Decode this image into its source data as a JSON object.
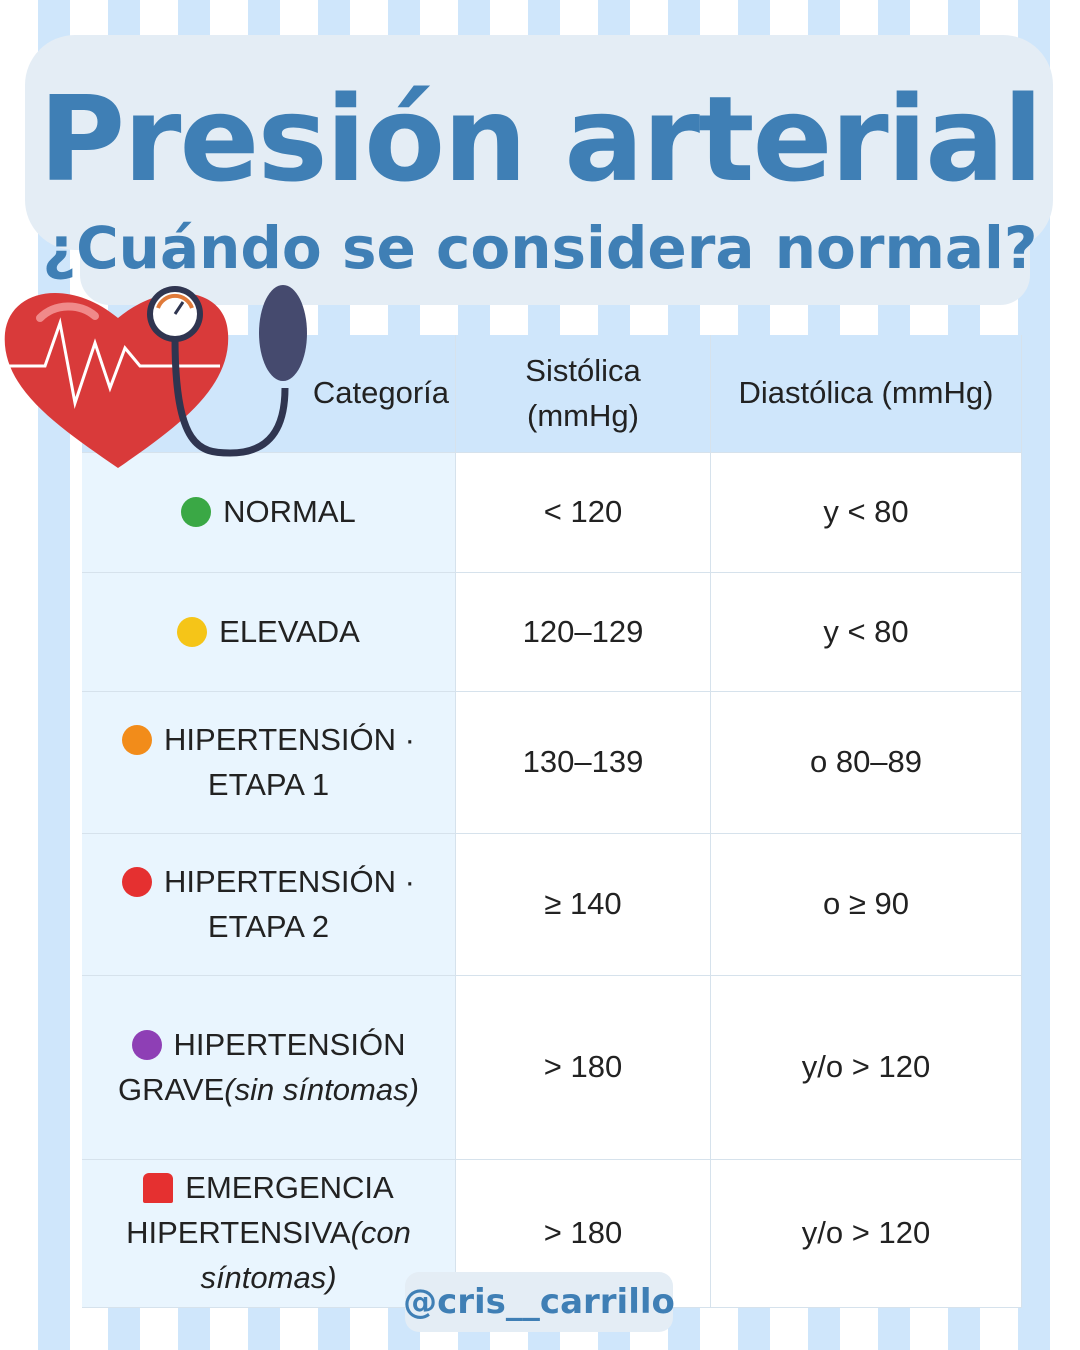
{
  "header": {
    "title": "Presión arterial",
    "subtitle": "¿Cuándo se considera normal?"
  },
  "table": {
    "columns": [
      "Categoría",
      "Sistólica (mmHg)",
      "Diastólica (mmHg)"
    ],
    "rows": [
      {
        "label": "NORMAL",
        "systolic": "< 120",
        "diastolic": "y < 80"
      },
      {
        "label": "ELEVADA",
        "systolic": "120–129",
        "diastolic": "y < 80"
      },
      {
        "label": "HIPERTENSIÓN · ETAPA 1",
        "systolic": "130–139",
        "diastolic": "o 80–89"
      },
      {
        "label": "HIPERTENSIÓN · ETAPA 2",
        "systolic": "≥ 140",
        "diastolic": "o ≥ 90"
      },
      {
        "label": "HIPERTENSIÓN GRAVE",
        "note": "(sin síntomas)",
        "systolic": "> 180",
        "diastolic": "y/o > 120"
      },
      {
        "label": "EMERGENCIA HIPERTENSIVA",
        "note": "(con síntomas)",
        "systolic": "> 180",
        "diastolic": "y/o > 120"
      }
    ]
  },
  "footer": {
    "handle": "@cris__carrillo"
  }
}
